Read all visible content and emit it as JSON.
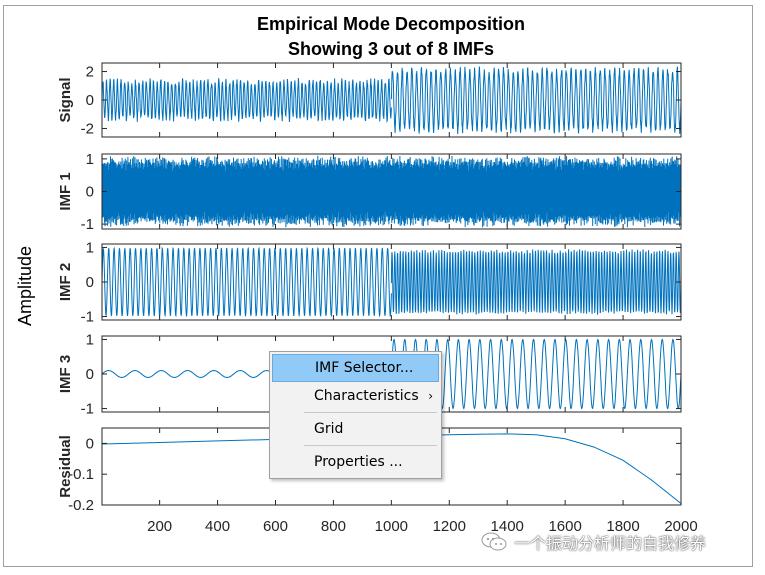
{
  "chart_data": {
    "type": "line",
    "title": "Empirical Mode Decomposition",
    "subtitle": "Showing 3 out of 8 IMFs",
    "ylabel": "Amplitude",
    "xlim": [
      1,
      2000
    ],
    "x_ticks": [
      200,
      400,
      600,
      800,
      1000,
      1200,
      1400,
      1600,
      1800,
      2000
    ],
    "grid": false,
    "line_color": "#0072bd",
    "panels": [
      {
        "name": "Signal",
        "ylim": [
          -2.6,
          2.6
        ],
        "y_ticks": [
          2,
          0,
          -2
        ],
        "segments": [
          {
            "x_range": [
              1,
              1000
            ],
            "amplitude": 1.3,
            "cycles_per_100_samples": 8,
            "noise": 0.25
          },
          {
            "x_range": [
              1000,
              2000
            ],
            "amplitude": 2.1,
            "cycles_per_100_samples": 6,
            "noise": 0.3
          }
        ]
      },
      {
        "name": "IMF 1",
        "ylim": [
          -1.15,
          1.15
        ],
        "y_ticks": [
          1,
          0,
          -1
        ],
        "segments": [
          {
            "x_range": [
              1,
              1000
            ],
            "amplitude": 0.95,
            "cycles_per_100_samples": 45,
            "noise": 0.15
          },
          {
            "x_range": [
              1000,
              2000
            ],
            "amplitude": 0.95,
            "cycles_per_100_samples": 45,
            "noise": 0.15
          }
        ]
      },
      {
        "name": "IMF 2",
        "ylim": [
          -1.1,
          1.1
        ],
        "y_ticks": [
          1,
          0,
          -1
        ],
        "segments": [
          {
            "x_range": [
              1,
              1000
            ],
            "amplitude": 0.98,
            "cycles_per_100_samples": 5.4,
            "noise": 0.0
          },
          {
            "x_range": [
              1000,
              2000
            ],
            "amplitude": 0.9,
            "cycles_per_100_samples": 10.5,
            "noise": 0.05
          }
        ]
      },
      {
        "name": "IMF 3",
        "ylim": [
          -1.1,
          1.1
        ],
        "y_ticks": [
          1,
          0,
          -1
        ],
        "segments": [
          {
            "x_range": [
              1,
              1000
            ],
            "amplitude": 0.1,
            "cycles_per_100_samples": 1.1,
            "noise": 0.0
          },
          {
            "x_range": [
              1000,
              2000
            ],
            "amplitude": 1.0,
            "cycles_per_100_samples": 2.7,
            "noise": 0.0
          }
        ]
      },
      {
        "name": "Residual",
        "ylim": [
          -0.2,
          0.05
        ],
        "y_ticks": [
          0,
          -0.1,
          -0.2
        ],
        "residual_points": [
          [
            1,
            -0.002
          ],
          [
            200,
            0.003
          ],
          [
            400,
            0.008
          ],
          [
            600,
            0.013
          ],
          [
            800,
            0.018
          ],
          [
            1000,
            0.023
          ],
          [
            1200,
            0.028
          ],
          [
            1300,
            0.03
          ],
          [
            1400,
            0.031
          ],
          [
            1500,
            0.028
          ],
          [
            1600,
            0.015
          ],
          [
            1700,
            -0.012
          ],
          [
            1800,
            -0.055
          ],
          [
            1900,
            -0.12
          ],
          [
            2000,
            -0.195
          ]
        ]
      }
    ]
  },
  "context_menu": {
    "items": [
      {
        "label": "IMF Selector...",
        "highlighted": true
      },
      {
        "label": "Characteristics",
        "submenu": true
      },
      {
        "label": "Grid"
      },
      {
        "label": "Properties ..."
      }
    ],
    "submenu_arrow": "›"
  },
  "watermark": {
    "text": "一个振动分析师的自我修养",
    "icon": "wechat-icon"
  },
  "colors": {
    "frame_border": "#a0a0a0",
    "menu_highlight": "#91c9f7"
  }
}
